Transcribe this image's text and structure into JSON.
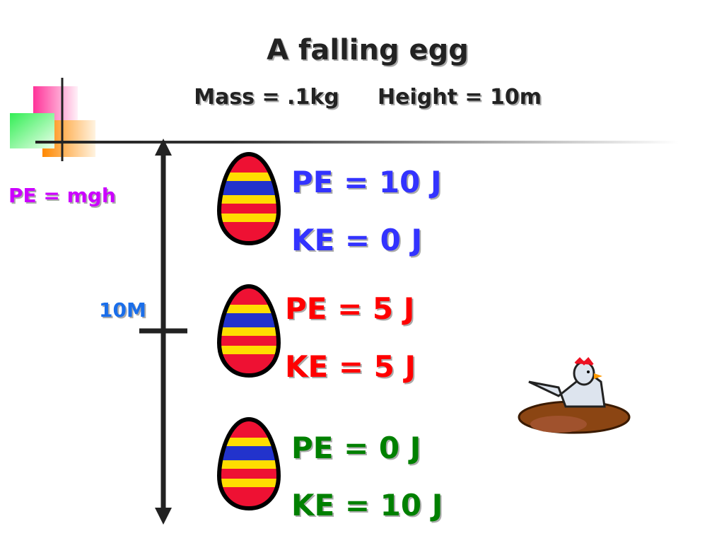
{
  "slide": {
    "title": "A falling egg",
    "mass": "Mass = .1kg",
    "height": "Height = 10m",
    "formula": "PE = mgh",
    "scale_label": "10M",
    "stages": [
      {
        "pe": "PE = 10 J",
        "ke": "KE = 0 J"
      },
      {
        "pe": "PE = 5 J",
        "ke": "KE = 5 J"
      },
      {
        "pe": "PE = 0 J",
        "ke": "KE = 10 J"
      }
    ]
  }
}
